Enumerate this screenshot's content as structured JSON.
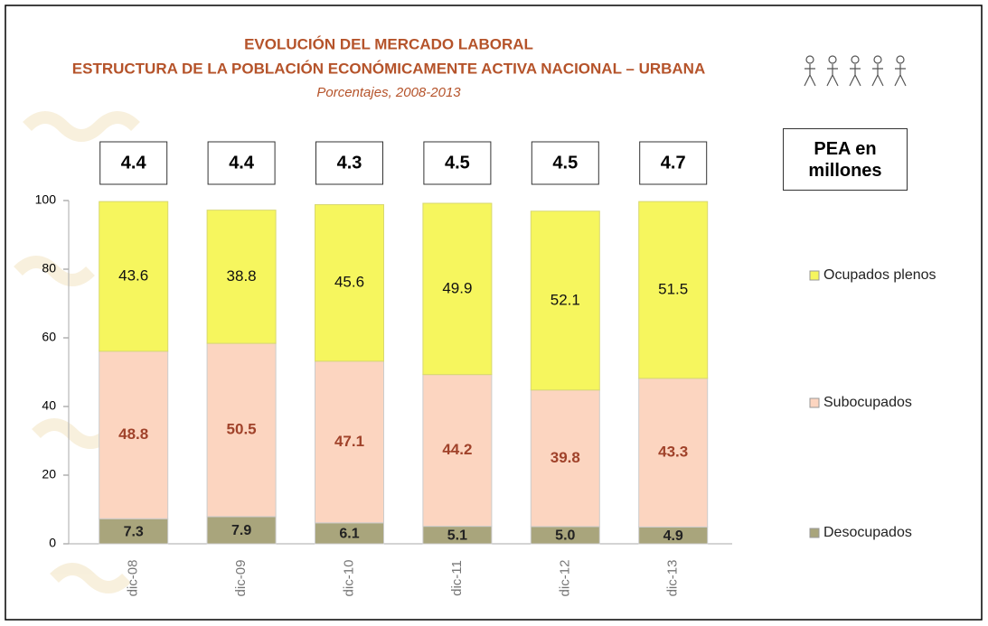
{
  "chart_data": {
    "type": "stacked_bar",
    "title": "EVOLUCIÓN DEL MERCADO LABORAL",
    "subtitle": "ESTRUCTURA DE LA POBLACIÓN ECONÓMICAMENTE ACTIVA NACIONAL – URBANA",
    "note": "Porcentajes, 2008-2013",
    "categories": [
      "dic-08",
      "dic-09",
      "dic-10",
      "dic-11",
      "dic-12",
      "dic-13"
    ],
    "series": [
      {
        "name": "Desocupados",
        "color": "#a9a57c",
        "values": [
          7.3,
          7.9,
          6.1,
          5.1,
          5.0,
          4.9
        ],
        "value_labels": [
          "7.3",
          "7.9",
          "6.1",
          "5.1",
          "5.0",
          "4.9"
        ]
      },
      {
        "name": "Subocupados",
        "color": "#fcd5c0",
        "values": [
          48.8,
          50.5,
          47.1,
          44.2,
          39.8,
          43.3
        ]
      },
      {
        "name": "Ocupados plenos",
        "color": "#f6f65e",
        "values": [
          43.6,
          38.8,
          45.6,
          49.9,
          52.1,
          51.5
        ]
      }
    ],
    "pea": {
      "label": "PEA en millones",
      "values": [
        4.4,
        4.4,
        4.3,
        4.5,
        4.5,
        4.7
      ]
    },
    "ylim": [
      0,
      100
    ],
    "yticks": [
      0,
      20,
      40,
      60,
      80,
      100
    ],
    "grid": false,
    "legend": "right"
  }
}
